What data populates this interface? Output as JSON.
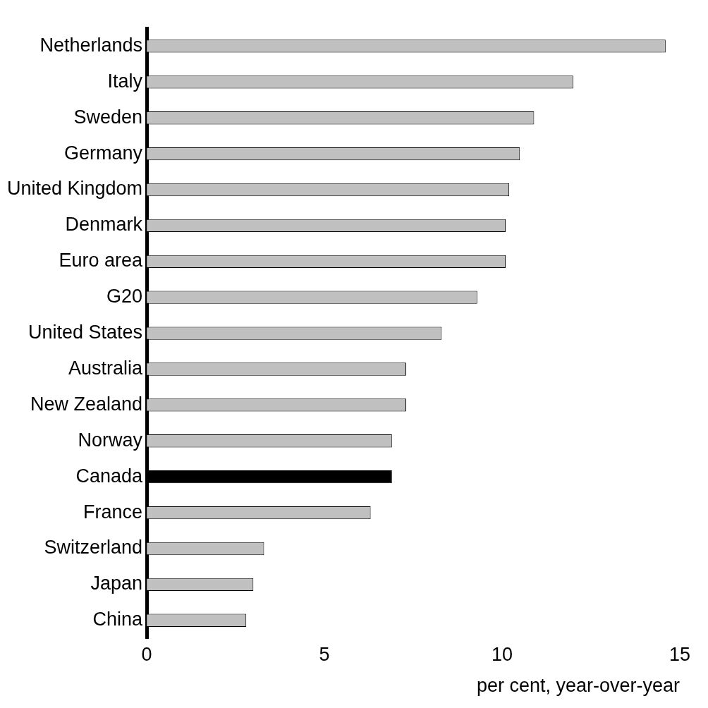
{
  "chart_data": {
    "type": "bar",
    "orientation": "horizontal",
    "categories": [
      "Netherlands",
      "Italy",
      "Sweden",
      "Germany",
      "United Kingdom",
      "Denmark",
      "Euro area",
      "G20",
      "United States",
      "Australia",
      "New Zealand",
      "Norway",
      "Canada",
      "France",
      "Switzerland",
      "Japan",
      "China"
    ],
    "values": [
      14.6,
      12.0,
      10.9,
      10.5,
      10.2,
      10.1,
      10.1,
      9.3,
      8.3,
      7.3,
      7.3,
      6.9,
      6.9,
      6.3,
      3.3,
      3.0,
      2.8
    ],
    "colors": [
      "#c0c0c0",
      "#c0c0c0",
      "#c0c0c0",
      "#c0c0c0",
      "#c0c0c0",
      "#c0c0c0",
      "#c0c0c0",
      "#c0c0c0",
      "#c0c0c0",
      "#c0c0c0",
      "#c0c0c0",
      "#c0c0c0",
      "#000000",
      "#c0c0c0",
      "#c0c0c0",
      "#c0c0c0",
      "#c0c0c0"
    ],
    "x_label": "per cent, year-over-year",
    "xlim": [
      0,
      15
    ],
    "xticks": [
      0,
      5,
      10,
      15
    ],
    "grid": false
  }
}
